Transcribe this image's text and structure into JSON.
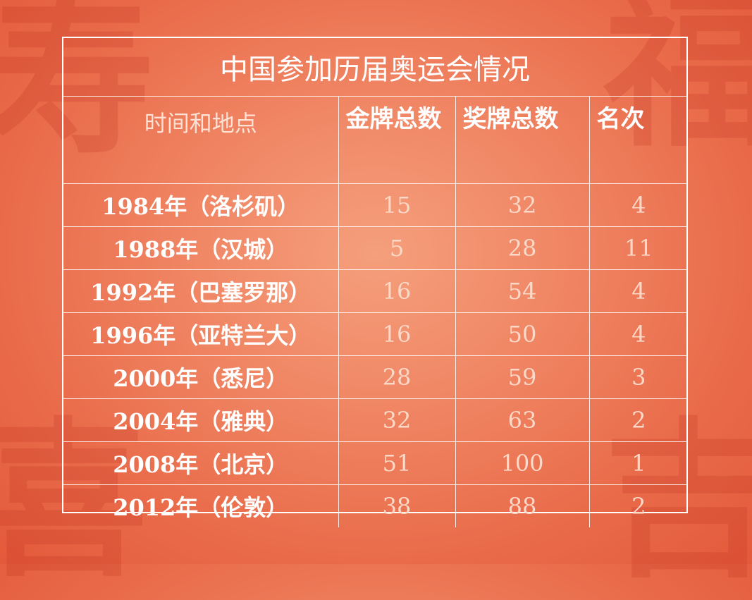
{
  "table": {
    "title": "中国参加历届奥运会情况",
    "headers": {
      "place": "时间和地点",
      "gold": "金牌总数",
      "medals": "奖牌总数",
      "rank": "名次"
    },
    "rows": [
      {
        "place": "1984年（洛杉矶）",
        "gold": "15",
        "medals": "32",
        "rank": "4"
      },
      {
        "place": "1988年（汉城）",
        "gold": "5",
        "medals": "28",
        "rank": "11"
      },
      {
        "place": "1992年（巴塞罗那）",
        "gold": "16",
        "medals": "54",
        "rank": "4"
      },
      {
        "place": "1996年（亚特兰大）",
        "gold": "16",
        "medals": "50",
        "rank": "4"
      },
      {
        "place": "2000年（悉尼）",
        "gold": "28",
        "medals": "59",
        "rank": "3"
      },
      {
        "place": "2004年（雅典）",
        "gold": "32",
        "medals": "63",
        "rank": "2"
      },
      {
        "place": "2008年（北京）",
        "gold": "51",
        "medals": "100",
        "rank": "1"
      },
      {
        "place": "2012年（伦敦）",
        "gold": "38",
        "medals": "88",
        "rank": "2"
      }
    ]
  },
  "colors": {
    "background": "#f08664",
    "border": "#ffffff",
    "text": "#ffffff"
  }
}
